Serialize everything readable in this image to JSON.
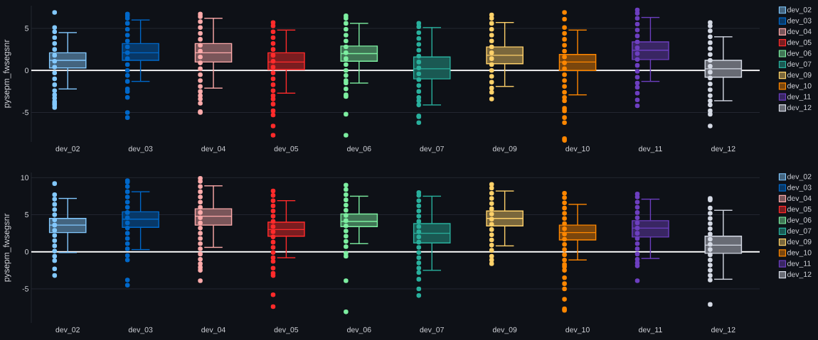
{
  "chart_data": [
    {
      "type": "box",
      "ylabel": "pysepm_fwsegsnr",
      "categories": [
        "dev_02",
        "dev_03",
        "dev_04",
        "dev_05",
        "dev_06",
        "dev_07",
        "dev_09",
        "dev_10",
        "dev_11",
        "dev_12"
      ],
      "ylim": [
        -8.5,
        7.7
      ],
      "yticks": [
        -5,
        0,
        5
      ],
      "grid": "y",
      "legend": "top right",
      "marker": "circle",
      "ref_lines": [
        {
          "axis": "y",
          "value": 0,
          "color": "#ffffff"
        }
      ],
      "series": [
        {
          "name": "dev_02",
          "color": "#83c9ff",
          "boxes": [
            {
              "low": -2.2,
              "q1": 0.3,
              "median": 1.2,
              "q3": 2.1,
              "high": 4.5,
              "outliers": [
                6.9,
                5.1,
                4.6,
                3.9,
                3.2,
                2.5,
                1.8,
                1.1,
                0.4,
                -0.3,
                -1.0,
                -1.7,
                -2.4,
                -2.9,
                -3.3,
                -3.7,
                -3.9,
                -4.1,
                -4.4
              ]
            },
            null,
            null,
            null,
            null,
            null,
            null,
            null,
            null,
            null
          ]
        },
        {
          "name": "dev_03",
          "color": "#0068c9",
          "boxes": [
            null,
            {
              "low": -1.3,
              "q1": 1.2,
              "median": 2.1,
              "q3": 3.2,
              "high": 6.0,
              "outliers": [
                6.7,
                6.5,
                6.2,
                5.6,
                4.9,
                4.2,
                3.5,
                2.8,
                2.1,
                1.4,
                0.7,
                0.0,
                -0.6,
                -1.3,
                -2.2,
                -2.5,
                -3.2,
                -5.0,
                -5.6
              ]
            },
            null,
            null,
            null,
            null,
            null,
            null,
            null,
            null
          ]
        },
        {
          "name": "dev_04",
          "color": "#ffabab",
          "boxes": [
            null,
            null,
            {
              "low": -2.1,
              "q1": 1.0,
              "median": 2.1,
              "q3": 3.2,
              "high": 6.2,
              "outliers": [
                6.7,
                6.4,
                5.8,
                5.1,
                4.4,
                3.7,
                3.0,
                2.3,
                1.6,
                0.9,
                0.2,
                -0.5,
                -1.2,
                -1.9,
                -2.5,
                -3.0,
                -3.4,
                -3.9,
                -4.9,
                -5.0
              ]
            },
            null,
            null,
            null,
            null,
            null,
            null,
            null
          ]
        },
        {
          "name": "dev_05",
          "color": "#ff2b2b",
          "boxes": [
            null,
            null,
            null,
            {
              "low": -2.7,
              "q1": 0.1,
              "median": 1.0,
              "q3": 2.1,
              "high": 4.8,
              "outliers": [
                5.7,
                5.3,
                4.6,
                3.9,
                3.2,
                2.5,
                1.8,
                1.1,
                0.4,
                -0.3,
                -1.0,
                -1.7,
                -2.4,
                -3.0,
                -3.4,
                -4.0,
                -4.8,
                -5.3,
                -6.6,
                -7.7
              ]
            },
            null,
            null,
            null,
            null,
            null,
            null
          ]
        },
        {
          "name": "dev_06",
          "color": "#7defa1",
          "boxes": [
            null,
            null,
            null,
            null,
            {
              "low": -1.5,
              "q1": 1.1,
              "median": 2.0,
              "q3": 2.9,
              "high": 5.6,
              "outliers": [
                6.5,
                6.2,
                5.6,
                4.9,
                4.2,
                3.5,
                2.8,
                2.1,
                1.4,
                0.7,
                0.0,
                -0.6,
                -1.2,
                -1.5,
                -2.2,
                -2.9,
                -3.1,
                -5.2,
                -7.7
              ]
            },
            null,
            null,
            null,
            null,
            null
          ]
        },
        {
          "name": "dev_07",
          "color": "#29b09d",
          "boxes": [
            null,
            null,
            null,
            null,
            null,
            {
              "low": -4.1,
              "q1": -1.0,
              "median": 0.2,
              "q3": 1.6,
              "high": 5.1,
              "outliers": [
                5.6,
                5.2,
                4.5,
                3.8,
                3.1,
                2.4,
                1.7,
                1.0,
                0.3,
                -0.4,
                -1.1,
                -1.8,
                -2.5,
                -3.2,
                -3.6,
                -4.1,
                -5.4,
                -5.5,
                -6.2
              ]
            },
            null,
            null,
            null,
            null
          ]
        },
        {
          "name": "dev_09",
          "color": "#ffd16a",
          "boxes": [
            null,
            null,
            null,
            null,
            null,
            null,
            {
              "low": -1.9,
              "q1": 0.8,
              "median": 1.8,
              "q3": 2.8,
              "high": 5.7,
              "outliers": [
                6.6,
                6.2,
                5.6,
                4.9,
                4.2,
                3.5,
                2.8,
                2.1,
                1.4,
                0.7,
                0.0,
                -0.7,
                -1.4,
                -2.1,
                -2.6,
                -3.4
              ]
            },
            null,
            null,
            null
          ]
        },
        {
          "name": "dev_10",
          "color": "#ff8700",
          "boxes": [
            null,
            null,
            null,
            null,
            null,
            null,
            null,
            {
              "low": -2.9,
              "q1": 0.0,
              "median": 1.0,
              "q3": 1.9,
              "high": 4.8,
              "outliers": [
                6.9,
                6.1,
                5.1,
                4.4,
                3.7,
                3.0,
                2.3,
                1.6,
                0.9,
                0.2,
                -0.5,
                -1.2,
                -1.9,
                -2.6,
                -3.2,
                -3.6,
                -4.5,
                -4.8,
                -5.6,
                -6.2,
                -8.1,
                -8.3
              ]
            },
            null,
            null
          ]
        },
        {
          "name": "dev_11",
          "color": "#6d3fc0",
          "boxes": [
            null,
            null,
            null,
            null,
            null,
            null,
            null,
            null,
            {
              "low": -1.3,
              "q1": 1.3,
              "median": 2.4,
              "q3": 3.4,
              "high": 6.3,
              "outliers": [
                7.2,
                6.8,
                6.2,
                5.5,
                4.8,
                4.1,
                3.4,
                2.7,
                2.0,
                1.3,
                0.6,
                -0.1,
                -0.8,
                -1.5,
                -2.0,
                -2.7,
                -3.5,
                -4.2
              ]
            },
            null
          ]
        },
        {
          "name": "dev_12",
          "color": "#d5dae5",
          "boxes": [
            null,
            null,
            null,
            null,
            null,
            null,
            null,
            null,
            null,
            {
              "low": -3.6,
              "q1": -0.8,
              "median": 0.2,
              "q3": 1.2,
              "high": 4.0,
              "outliers": [
                5.7,
                5.3,
                4.7,
                4.0,
                3.3,
                2.6,
                1.9,
                1.2,
                0.5,
                -0.2,
                -0.9,
                -1.6,
                -2.3,
                -3.0,
                -3.6,
                -4.1,
                -4.8,
                -5.2,
                -6.6
              ]
            }
          ]
        }
      ]
    },
    {
      "type": "box",
      "ylabel": "pysepm_fwsegsnr",
      "categories": [
        "dev_02",
        "dev_03",
        "dev_04",
        "dev_05",
        "dev_06",
        "dev_07",
        "dev_09",
        "dev_10",
        "dev_11",
        "dev_12"
      ],
      "ylim": [
        -9.6,
        10.7
      ],
      "yticks": [
        -5,
        0,
        5,
        10
      ],
      "grid": "y",
      "legend": "top right",
      "marker": "circle",
      "ref_lines": [
        {
          "axis": "y",
          "value": 0,
          "color": "#ffffff"
        }
      ],
      "series": [
        {
          "name": "dev_02",
          "color": "#83c9ff",
          "boxes": [
            {
              "low": -0.1,
              "q1": 2.6,
              "median": 3.6,
              "q3": 4.5,
              "high": 7.2,
              "outliers": [
                9.2,
                7.7,
                7.1,
                6.4,
                5.7,
                5.0,
                4.3,
                3.6,
                2.9,
                2.2,
                1.5,
                0.8,
                0.1,
                -0.6,
                -1.2,
                -2.3,
                -3.2
              ]
            },
            null,
            null,
            null,
            null,
            null,
            null,
            null,
            null,
            null
          ]
        },
        {
          "name": "dev_03",
          "color": "#0068c9",
          "boxes": [
            null,
            {
              "low": 0.3,
              "q1": 3.3,
              "median": 4.4,
              "q3": 5.4,
              "high": 8.1,
              "outliers": [
                9.6,
                9.4,
                8.8,
                8.1,
                7.4,
                6.7,
                6.0,
                5.3,
                4.6,
                3.9,
                3.2,
                2.5,
                1.8,
                1.1,
                0.4,
                -0.5,
                -1.1,
                -3.8,
                -4.5
              ]
            },
            null,
            null,
            null,
            null,
            null,
            null,
            null,
            null
          ]
        },
        {
          "name": "dev_04",
          "color": "#ffabab",
          "boxes": [
            null,
            null,
            {
              "low": 0.6,
              "q1": 3.6,
              "median": 4.8,
              "q3": 5.8,
              "high": 8.9,
              "outliers": [
                9.9,
                9.5,
                8.8,
                8.1,
                7.4,
                6.7,
                6.0,
                5.3,
                4.6,
                3.9,
                3.2,
                2.5,
                1.8,
                1.1,
                0.4,
                -0.3,
                -1.0,
                -1.6,
                -2.1,
                -2.5,
                -3.9
              ]
            },
            null,
            null,
            null,
            null,
            null,
            null,
            null
          ]
        },
        {
          "name": "dev_05",
          "color": "#ff2b2b",
          "boxes": [
            null,
            null,
            null,
            {
              "low": -0.8,
              "q1": 2.1,
              "median": 3.0,
              "q3": 4.0,
              "high": 6.9,
              "outliers": [
                8.2,
                7.6,
                6.9,
                6.2,
                5.5,
                4.8,
                4.1,
                3.4,
                2.7,
                2.0,
                1.3,
                0.6,
                -0.1,
                -0.8,
                -1.3,
                -2.2,
                -2.9,
                -3.2,
                -5.8,
                -7.4
              ]
            },
            null,
            null,
            null,
            null,
            null,
            null
          ]
        },
        {
          "name": "dev_06",
          "color": "#7defa1",
          "boxes": [
            null,
            null,
            null,
            null,
            {
              "low": 1.1,
              "q1": 3.4,
              "median": 4.1,
              "q3": 5.1,
              "high": 7.5,
              "outliers": [
                9.0,
                8.4,
                7.7,
                7.0,
                6.3,
                5.6,
                4.9,
                4.2,
                3.5,
                2.8,
                2.1,
                1.4,
                0.7,
                -0.2,
                -0.6,
                -3.9,
                -8.1
              ]
            },
            null,
            null,
            null,
            null,
            null
          ]
        },
        {
          "name": "dev_07",
          "color": "#29b09d",
          "boxes": [
            null,
            null,
            null,
            null,
            null,
            {
              "low": -2.5,
              "q1": 1.2,
              "median": 2.5,
              "q3": 3.8,
              "high": 7.5,
              "outliers": [
                8.0,
                7.6,
                6.9,
                6.2,
                5.5,
                4.8,
                4.1,
                3.4,
                2.7,
                2.0,
                1.3,
                0.6,
                -0.1,
                -0.8,
                -1.5,
                -2.2,
                -2.8,
                -3.7,
                -5.0,
                -5.9
              ]
            },
            null,
            null,
            null,
            null
          ]
        },
        {
          "name": "dev_09",
          "color": "#ffd16a",
          "boxes": [
            null,
            null,
            null,
            null,
            null,
            null,
            {
              "low": 0.8,
              "q1": 3.5,
              "median": 4.5,
              "q3": 5.5,
              "high": 8.2,
              "outliers": [
                9.1,
                8.6,
                7.9,
                7.2,
                6.5,
                5.8,
                5.1,
                4.4,
                3.7,
                3.0,
                2.3,
                1.6,
                0.9,
                0.2,
                -0.6,
                -1.1,
                -1.6
              ]
            },
            null,
            null,
            null
          ]
        },
        {
          "name": "dev_10",
          "color": "#ff8700",
          "boxes": [
            null,
            null,
            null,
            null,
            null,
            null,
            null,
            {
              "low": -1.1,
              "q1": 1.6,
              "median": 2.6,
              "q3": 3.6,
              "high": 6.4,
              "outliers": [
                7.9,
                7.3,
                6.6,
                5.9,
                5.2,
                4.5,
                3.8,
                3.1,
                2.4,
                1.7,
                1.0,
                0.3,
                -0.4,
                -1.1,
                -1.7,
                -2.0,
                -2.5,
                -3.5,
                -4.3,
                -5.0,
                -6.4,
                -7.7,
                -7.9
              ]
            },
            null,
            null
          ]
        },
        {
          "name": "dev_11",
          "color": "#6d3fc0",
          "boxes": [
            null,
            null,
            null,
            null,
            null,
            null,
            null,
            null,
            {
              "low": -0.9,
              "q1": 2.0,
              "median": 3.2,
              "q3": 4.2,
              "high": 7.1,
              "outliers": [
                7.8,
                7.4,
                6.7,
                6.0,
                5.3,
                4.6,
                3.9,
                3.2,
                2.5,
                1.8,
                1.1,
                0.4,
                -0.3,
                -1.0,
                -1.5,
                -1.9,
                -3.9
              ]
            },
            null
          ]
        },
        {
          "name": "dev_12",
          "color": "#d5dae5",
          "boxes": [
            null,
            null,
            null,
            null,
            null,
            null,
            null,
            null,
            null,
            {
              "low": -3.7,
              "q1": -0.2,
              "median": 0.9,
              "q3": 2.1,
              "high": 5.6,
              "outliers": [
                7.2,
                7.0,
                5.9,
                5.2,
                4.5,
                3.8,
                3.1,
                2.4,
                1.7,
                1.0,
                0.3,
                -0.4,
                -1.1,
                -1.8,
                -2.5,
                -3.2,
                -3.8,
                -7.1
              ]
            }
          ]
        }
      ]
    }
  ]
}
